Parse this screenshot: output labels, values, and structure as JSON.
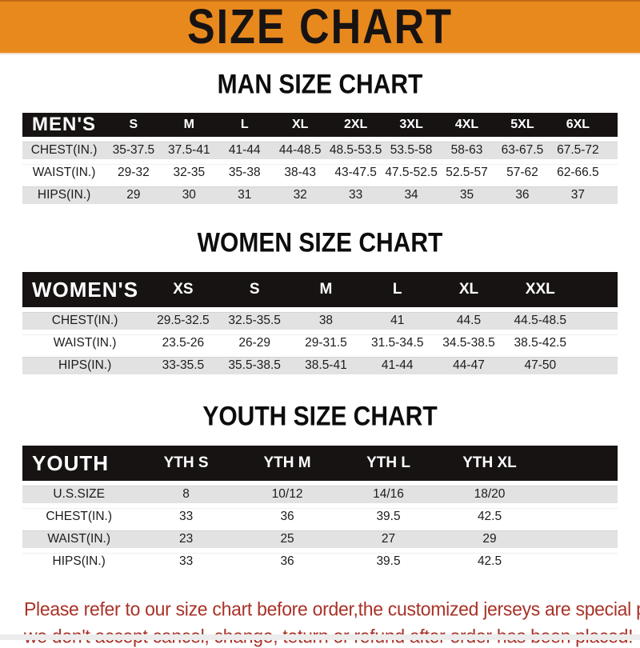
{
  "banner": {
    "title": "SIZE CHART"
  },
  "sections": [
    {
      "heading": "MAN SIZE CHART",
      "table": {
        "header_label": "MEN'S",
        "columns": [
          "S",
          "M",
          "L",
          "XL",
          "2XL",
          "3XL",
          "4XL",
          "5XL",
          "6XL"
        ],
        "rows": [
          {
            "label": "CHEST(IN.)",
            "values": [
              "35-37.5",
              "37.5-41",
              "41-44",
              "44-48.5",
              "48.5-53.5",
              "53.5-58",
              "58-63",
              "63-67.5",
              "67.5-72"
            ]
          },
          {
            "label": "WAIST(IN.)",
            "values": [
              "29-32",
              "32-35",
              "35-38",
              "38-43",
              "43-47.5",
              "47.5-52.5",
              "52.5-57",
              "57-62",
              "62-66.5"
            ]
          },
          {
            "label": "HIPS(IN.)",
            "values": [
              "29",
              "30",
              "31",
              "32",
              "33",
              "34",
              "35",
              "36",
              "37"
            ]
          }
        ]
      }
    },
    {
      "heading": "WOMEN SIZE CHART",
      "table": {
        "header_label": "WOMEN'S",
        "columns": [
          "XS",
          "S",
          "M",
          "L",
          "XL",
          "XXL"
        ],
        "rows": [
          {
            "label": "CHEST(IN.)",
            "values": [
              "29.5-32.5",
              "32.5-35.5",
              "38",
              "41",
              "44.5",
              "44.5-48.5"
            ]
          },
          {
            "label": "WAIST(IN.)",
            "values": [
              "23.5-26",
              "26-29",
              "29-31.5",
              "31.5-34.5",
              "34.5-38.5",
              "38.5-42.5"
            ]
          },
          {
            "label": "HIPS(IN.)",
            "values": [
              "33-35.5",
              "35.5-38.5",
              "38.5-41",
              "41-44",
              "44-47",
              "47-50"
            ]
          }
        ]
      }
    },
    {
      "heading": "YOUTH SIZE CHART",
      "table": {
        "header_label": "YOUTH",
        "columns": [
          "YTH S",
          "YTH M",
          "YTH L",
          "YTH XL"
        ],
        "rows": [
          {
            "label": "U.S.SIZE",
            "values": [
              "8",
              "10/12",
              "14/16",
              "18/20"
            ]
          },
          {
            "label": "CHEST(IN.)",
            "values": [
              "33",
              "36",
              "39.5",
              "42.5"
            ]
          },
          {
            "label": "WAIST(IN.)",
            "values": [
              "23",
              "25",
              "27",
              "29"
            ]
          },
          {
            "label": "HIPS(IN.)",
            "values": [
              "33",
              "36",
              "39.5",
              "42.5"
            ]
          }
        ]
      }
    }
  ],
  "footer": {
    "line1": "Please refer to our size chart before order,the customized jerseys are special products,",
    "line2": "we don't accept cancel, change, teturn or refund after order has been placed!"
  },
  "colors": {
    "banner_bg": "#E8891E",
    "header_bar": "#171313",
    "row_shade": "#E2E2E2",
    "notice_text": "#A93228"
  }
}
